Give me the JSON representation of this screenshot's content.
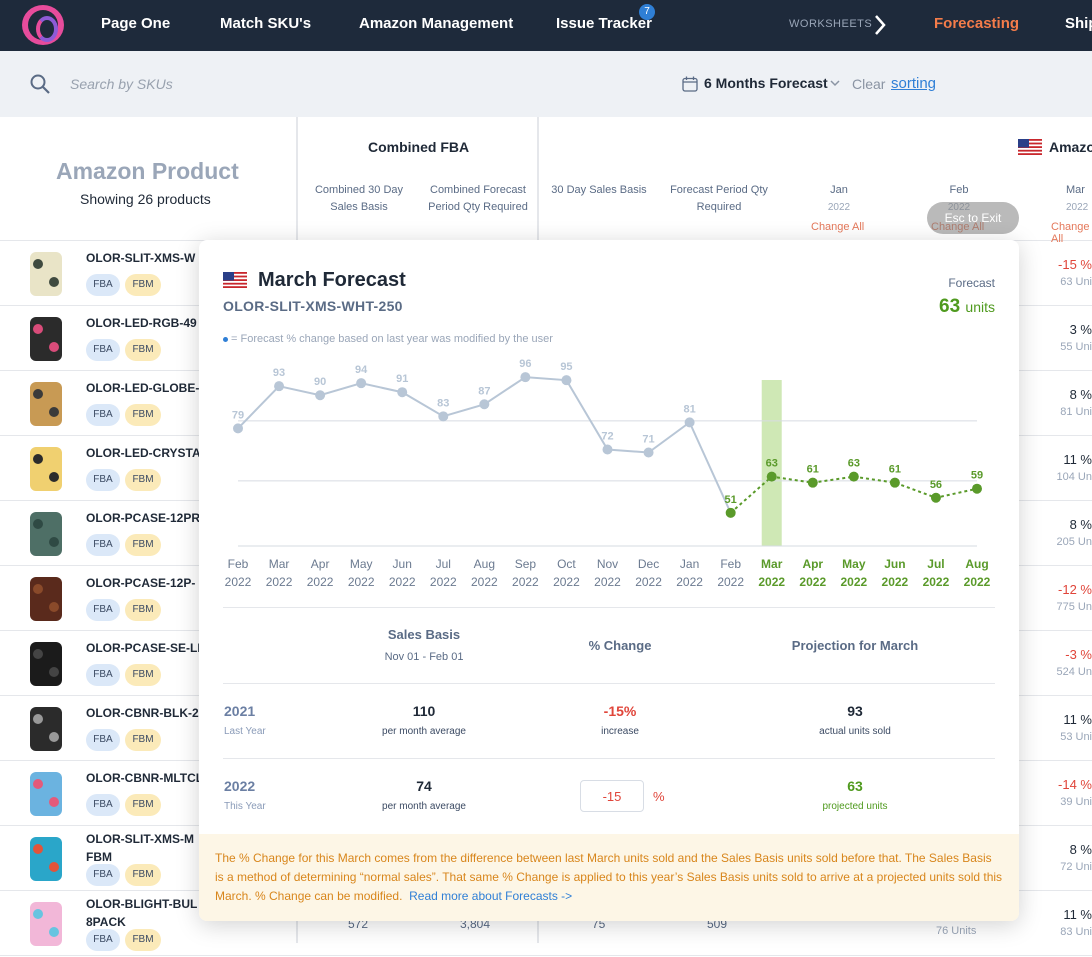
{
  "nav": {
    "items": [
      "Page One",
      "Match SKU's",
      "Amazon Management",
      "Issue Tracker"
    ],
    "issue_badge": "7",
    "worksheets_label": "WORKSHEETS",
    "active_item": "Forecasting",
    "cut_item": "Ship"
  },
  "search": {
    "placeholder": "Search by SKUs"
  },
  "forecast_select": "6 Months Forecast",
  "clear_label": "Clear",
  "sorting_link": "sorting",
  "header": {
    "amazon_product": "Amazon Product",
    "showing": "Showing 26 products",
    "combined_fba": "Combined FBA",
    "combined_30_day_l1": "Combined 30 Day",
    "combined_30_day_l2": "Sales Basis",
    "combined_forecast_l1": "Combined Forecast",
    "combined_forecast_l2": "Period Qty Required",
    "sales_basis_30": "30 Day Sales Basis",
    "forecast_qty_l1": "Forecast Period Qty",
    "forecast_qty_l2": "Required",
    "amazon_group": "Amazo",
    "months": [
      {
        "m": "Jan",
        "y": "2022"
      },
      {
        "m": "Feb",
        "y": "2022"
      },
      {
        "m": "Mar",
        "y": "2022"
      }
    ],
    "change_all": "Change All",
    "esc_label": "Esc to Exit"
  },
  "rows": [
    {
      "sku": "OLOR-SLIT-XMS-W",
      "sku2": "",
      "pct": "-15 %",
      "neg": true,
      "units": "63 Uni"
    },
    {
      "sku": "OLOR-LED-RGB-49",
      "sku2": "",
      "pct": "3 %",
      "neg": false,
      "units": "55 Uni"
    },
    {
      "sku": "OLOR-LED-GLOBE-",
      "sku2": "",
      "pct": "8 %",
      "neg": false,
      "units": "81 Uni"
    },
    {
      "sku": "OLOR-LED-CRYSTA",
      "sku2": "",
      "pct": "11 %",
      "neg": false,
      "units": "104 Un"
    },
    {
      "sku": "OLOR-PCASE-12PR",
      "sku2": "",
      "pct": "8 %",
      "neg": false,
      "units": "205 Un"
    },
    {
      "sku": "OLOR-PCASE-12P-",
      "sku2": "",
      "pct": "-12 %",
      "neg": true,
      "units": "775 Un"
    },
    {
      "sku": "OLOR-PCASE-SE-LI",
      "sku2": "",
      "pct": "-3 %",
      "neg": true,
      "units": "524 Un"
    },
    {
      "sku": "OLOR-CBNR-BLK-2",
      "sku2": "",
      "pct": "11 %",
      "neg": false,
      "units": "53 Uni"
    },
    {
      "sku": "OLOR-CBNR-MLTCL",
      "sku2": "",
      "pct": "-14 %",
      "neg": true,
      "units": "39 Uni"
    },
    {
      "sku": "OLOR-SLIT-XMS-M",
      "sku2": "FBM",
      "pct": "8 %",
      "neg": false,
      "units": "72 Uni"
    },
    {
      "sku": "OLOR-BLIGHT-BUL",
      "sku2": "8PACK",
      "pct": "11 %",
      "neg": false,
      "units": "83 Uni"
    }
  ],
  "tags": {
    "fba": "FBA",
    "fbm": "FBM"
  },
  "bottom": {
    "v1": "572",
    "v2": "3,804",
    "v3": "75",
    "v4": "509",
    "v5": "76 Units"
  },
  "modal": {
    "title": "March Forecast",
    "sku": "OLOR-SLIT-XMS-WHT-250",
    "forecast_label": "Forecast",
    "forecast_value": "63",
    "forecast_unit": "units",
    "legend": "= Forecast % change based on last year was modified by the user",
    "table": {
      "sales_basis": "Sales Basis",
      "sales_basis_range": "Nov 01 - Feb 01",
      "pct_change": "% Change",
      "projection": "Projection for March",
      "rows": [
        {
          "year": "2021",
          "year_sub": "Last Year",
          "avg": "110",
          "avg_sub": "per month average",
          "change": "-15%",
          "change_sub": "increase",
          "proj": "93",
          "proj_sub": "actual units sold"
        },
        {
          "year": "2022",
          "year_sub": "This Year",
          "avg": "74",
          "avg_sub": "per month average",
          "change": "-15",
          "change_sign": "%",
          "proj": "63",
          "proj_sub": "projected units"
        }
      ]
    },
    "note": "The % Change for this March comes from the difference between last March units sold and the Sales Basis units sold before that. The Sales Basis is a method of determining “normal sales”. That same % Change is applied to this year’s Sales Basis units sold to arrive at a projected units sold this March. % Change can be modified.",
    "note_link": "Read more about Forecasts ->"
  },
  "colors": {
    "actual": "#b8c6d6",
    "forecast": "#5a9a2a",
    "highlight": "#cfe8b5",
    "negative": "#e0453a",
    "accent": "#f47c4a"
  },
  "chart_data": {
    "type": "line",
    "categories": [
      "Feb 2022",
      "Mar 2022",
      "Apr 2022",
      "May 2022",
      "Jun 2022",
      "Jul 2022",
      "Aug 2022",
      "Sep 2022",
      "Oct 2022",
      "Nov 2022",
      "Dec 2022",
      "Jan 2022",
      "Feb 2022",
      "Mar 2022",
      "Apr 2022",
      "May 2022",
      "Jun 2022",
      "Jul 2022",
      "Aug 2022"
    ],
    "x_month": [
      "Feb",
      "Mar",
      "Apr",
      "May",
      "Jun",
      "Jul",
      "Aug",
      "Sep",
      "Oct",
      "Nov",
      "Dec",
      "Jan",
      "Feb",
      "Mar",
      "Apr",
      "May",
      "Jun",
      "Jul",
      "Aug"
    ],
    "x_year": [
      "2022",
      "2022",
      "2022",
      "2022",
      "2022",
      "2022",
      "2022",
      "2022",
      "2022",
      "2022",
      "2022",
      "2022",
      "2022",
      "2022",
      "2022",
      "2022",
      "2022",
      "2022",
      "2022"
    ],
    "series": [
      {
        "values": [
          79,
          93,
          90,
          94,
          91,
          83,
          87,
          96,
          95,
          72,
          71,
          81,
          51,
          null,
          null,
          null,
          null,
          null,
          null
        ]
      },
      {
        "values": [
          null,
          null,
          null,
          null,
          null,
          null,
          null,
          null,
          null,
          null,
          null,
          null,
          51,
          63,
          61,
          63,
          61,
          56,
          59
        ]
      }
    ],
    "highlight_index": 13,
    "ylim": [
      40,
      105
    ],
    "grid": true
  }
}
